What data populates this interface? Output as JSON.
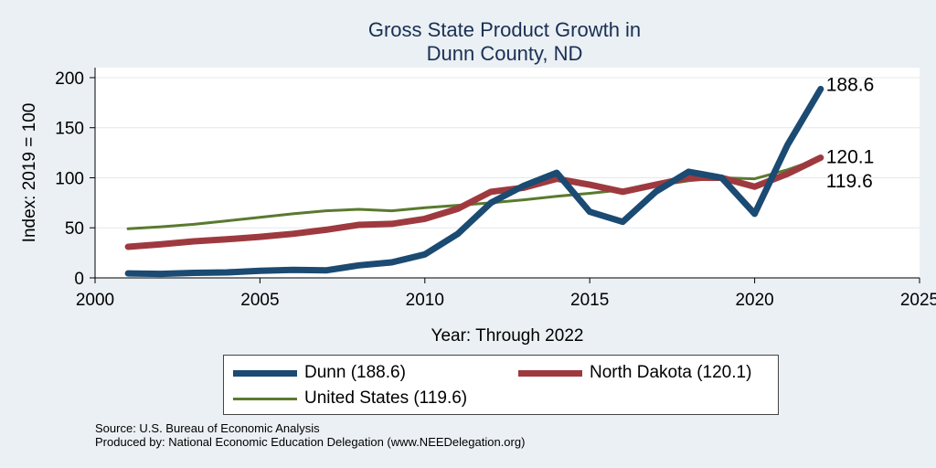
{
  "chart_data": {
    "type": "line",
    "title_line1": "Gross State Product Growth in",
    "title_line2": "Dunn County, ND",
    "xlabel": "Year: Through 2022",
    "ylabel": "Index: 2019 = 100",
    "xlim": [
      2000,
      2025
    ],
    "ylim": [
      0,
      210
    ],
    "x_ticks": [
      2000,
      2005,
      2010,
      2015,
      2020,
      2025
    ],
    "y_ticks": [
      0,
      50,
      100,
      150,
      200
    ],
    "grid": true,
    "x": [
      2001,
      2002,
      2003,
      2004,
      2005,
      2006,
      2007,
      2008,
      2009,
      2010,
      2011,
      2012,
      2013,
      2014,
      2015,
      2016,
      2017,
      2018,
      2019,
      2020,
      2021,
      2022
    ],
    "series": [
      {
        "name": "Dunn",
        "color": "#1b4a72",
        "values": [
          4.5,
          4,
          5,
          5.5,
          7,
          8,
          7.5,
          12.5,
          15.5,
          23.5,
          44,
          75,
          92,
          105,
          66,
          56,
          86,
          106,
          100,
          64,
          133,
          188.6
        ],
        "end_label": "188.6"
      },
      {
        "name": "North Dakota",
        "color": "#9e3a3f",
        "values": [
          31,
          33.5,
          36.5,
          38.5,
          41,
          44,
          48,
          53,
          54,
          59,
          69,
          86,
          90,
          99,
          93,
          86,
          93,
          100,
          100,
          91,
          104,
          120.1
        ],
        "end_label": "120.1"
      },
      {
        "name": "United States",
        "color": "#5a7a2f",
        "values": [
          49,
          51,
          53.5,
          57,
          60.5,
          64,
          67,
          68.5,
          67,
          70,
          72.5,
          75,
          78,
          81.5,
          84.5,
          88,
          92,
          97,
          100,
          99,
          108,
          119.6
        ],
        "end_label": "119.6"
      }
    ],
    "legend": [
      {
        "label": "Dunn  (188.6)",
        "color": "#1b4a72"
      },
      {
        "label": "North Dakota (120.1)",
        "color": "#9e3a3f"
      },
      {
        "label": "United States (119.6)",
        "color": "#5a7a2f"
      }
    ]
  },
  "source": {
    "line1": "Source: U.S. Bureau of Economic Analysis",
    "line2": "Produced by: National Economic Education Delegation (www.NEEDelegation.org)"
  }
}
